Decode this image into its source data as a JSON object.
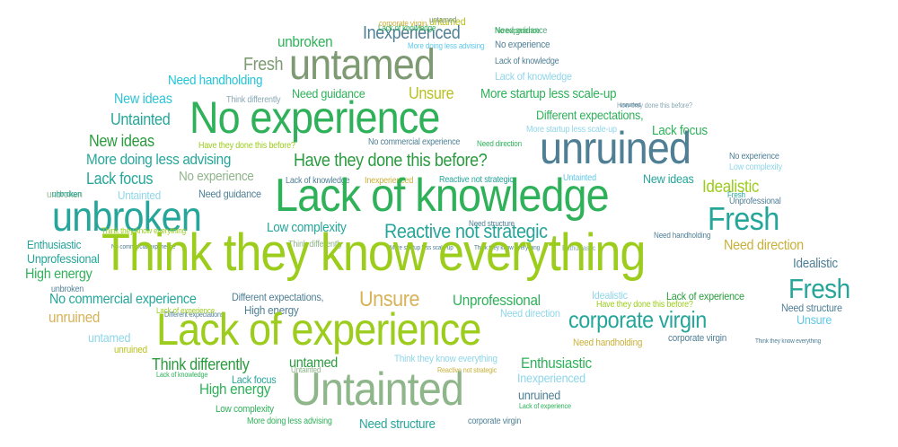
{
  "palette": {
    "lime": "#9ccc1c",
    "green": "#37b93b",
    "teal": "#26a69a",
    "slate": "#4f7f95",
    "sage": "#8fb58a",
    "sky": "#5fc8e8",
    "gold": "#d7b35a",
    "olive": "#a4b23c"
  },
  "words": [
    {
      "text": "corporate virgin",
      "color": "#c9b03a"
    },
    {
      "text": "untamed",
      "color": "#b8c11f"
    },
    {
      "text": "Need guidance",
      "color": "#5aa57e"
    },
    {
      "text": "unbroken",
      "color": "#2fb15a"
    },
    {
      "text": "Inexperienced",
      "color": "#4f7f95"
    },
    {
      "text": "More doing less advising",
      "color": "#5fc8e8"
    },
    {
      "text": "No experience",
      "color": "#4f7f95"
    },
    {
      "text": "Fresh",
      "color": "#7d9a72"
    },
    {
      "text": "untamed",
      "color": "#7d9a72"
    },
    {
      "text": "Lack of knowledge",
      "color": "#4f7f95"
    },
    {
      "text": "Lack of knowledge",
      "color": "#8fd6e9"
    },
    {
      "text": "Need handholding",
      "color": "#22c4d8"
    },
    {
      "text": "Think differently",
      "color": "#8aa8b4"
    },
    {
      "text": "Need guidance",
      "color": "#2fb15a"
    },
    {
      "text": "Unsure",
      "color": "#b8c11f"
    },
    {
      "text": "More startup less scale-up",
      "color": "#2fb15a"
    },
    {
      "text": "New ideas",
      "color": "#2ec3d5"
    },
    {
      "text": "No experience",
      "color": "#2fb15a"
    },
    {
      "text": "How they done this before?",
      "color": "#8aa8b4"
    },
    {
      "text": "Untainted",
      "color": "#26a69a"
    },
    {
      "text": "Different expectations,",
      "color": "#2fb15a"
    },
    {
      "text": "More startup less scale-up",
      "color": "#8fd6e9"
    },
    {
      "text": "Lack focus",
      "color": "#2fb15a"
    },
    {
      "text": "New ideas",
      "color": "#2a9b3e"
    },
    {
      "text": "Have they done this before?",
      "color": "#9ccc1c"
    },
    {
      "text": "No commercial experience",
      "color": "#4f7f95"
    },
    {
      "text": "Need direction",
      "color": "#2fb15a"
    },
    {
      "text": "unruined",
      "color": "#4f7f95"
    },
    {
      "text": "No experience",
      "color": "#4f7f95"
    },
    {
      "text": "More doing less advising",
      "color": "#26a69a"
    },
    {
      "text": "Have they done this before?",
      "color": "#2a9b3e"
    },
    {
      "text": "Low complexity",
      "color": "#8fd6e9"
    },
    {
      "text": "Lack focus",
      "color": "#26a69a"
    },
    {
      "text": "No experience",
      "color": "#8fb58a"
    },
    {
      "text": "Lack of knowledge",
      "color": "#4f7f95"
    },
    {
      "text": "Inexperienced",
      "color": "#c9b03a"
    },
    {
      "text": "Reactive not strategic",
      "color": "#26a69a"
    },
    {
      "text": "Untainted",
      "color": "#5fc8e8"
    },
    {
      "text": "New ideas",
      "color": "#26a69a"
    },
    {
      "text": "Idealistic",
      "color": "#9ccc1c"
    },
    {
      "text": "unbroken",
      "color": "#8fb58a"
    },
    {
      "text": "Untainted",
      "color": "#8fd6e9"
    },
    {
      "text": "Need guidance",
      "color": "#4f7f95"
    },
    {
      "text": "Lack of knowledge",
      "color": "#2fb15a"
    },
    {
      "text": "Fresh",
      "color": "#26a69a"
    },
    {
      "text": "Unprofessional",
      "color": "#4f7f95"
    },
    {
      "text": "unbroken",
      "color": "#26a69a"
    },
    {
      "text": "Need structure",
      "color": "#4f7f95"
    },
    {
      "text": "Low complexity",
      "color": "#26a69a"
    },
    {
      "text": "Reactive not strategic",
      "color": "#26a69a"
    },
    {
      "text": "Need handholding",
      "color": "#4f7f95"
    },
    {
      "text": "Enthusiastic",
      "color": "#26a69a"
    },
    {
      "text": "No commercial experience",
      "color": "#4f7f95"
    },
    {
      "text": "Think differently",
      "color": "#8fb58a"
    },
    {
      "text": "More startup less scale-up",
      "color": "#4f7f95"
    },
    {
      "text": "Think they know everything",
      "color": "#4f7f95"
    },
    {
      "text": "Enthusiastic",
      "color": "#8aa8b4"
    },
    {
      "text": "Need direction",
      "color": "#c9b03a"
    },
    {
      "text": "Unprofessional",
      "color": "#26a69a"
    },
    {
      "text": "Think they know everything",
      "color": "#9ccc1c"
    },
    {
      "text": "Idealistic",
      "color": "#4f7f95"
    },
    {
      "text": "High energy",
      "color": "#2fb15a"
    },
    {
      "text": "Fresh",
      "color": "#26a69a"
    },
    {
      "text": "unbroken",
      "color": "#4f7f95"
    },
    {
      "text": "No commercial experience",
      "color": "#26a69a"
    },
    {
      "text": "Different expectations,",
      "color": "#4f7f95"
    },
    {
      "text": "Unsure",
      "color": "#d7b35a"
    },
    {
      "text": "Unprofessional",
      "color": "#2fb15a"
    },
    {
      "text": "Idealistic",
      "color": "#8fd6e9"
    },
    {
      "text": "Lack of experience",
      "color": "#2a9b3e"
    },
    {
      "text": "Need structure",
      "color": "#4f7f95"
    },
    {
      "text": "Have they done this before?",
      "color": "#9ccc1c"
    },
    {
      "text": "Different expectations,",
      "color": "#4f7f95"
    },
    {
      "text": "High energy",
      "color": "#4f7f95"
    },
    {
      "text": "Need direction",
      "color": "#8fd6e9"
    },
    {
      "text": "unruined",
      "color": "#d7b35a"
    },
    {
      "text": "corporate virgin",
      "color": "#26a69a"
    },
    {
      "text": "Unsure",
      "color": "#5fc8e8"
    },
    {
      "text": "Lack of experience",
      "color": "#9ccc1c"
    },
    {
      "text": "untamed",
      "color": "#8fd6e9"
    },
    {
      "text": "Need handholding",
      "color": "#c9b03a"
    },
    {
      "text": "corporate virgin",
      "color": "#4f7f95"
    },
    {
      "text": "Think they know everything",
      "color": "#4f7f95"
    },
    {
      "text": "unruined",
      "color": "#b8c11f"
    },
    {
      "text": "Think differently",
      "color": "#2a9b3e"
    },
    {
      "text": "untamed",
      "color": "#2a9b3e"
    },
    {
      "text": "Think they know everything",
      "color": "#8fd6e9"
    },
    {
      "text": "Enthusiastic",
      "color": "#2fb15a"
    },
    {
      "text": "Lack of knowledge",
      "color": "#2fb15a"
    },
    {
      "text": "Lack focus",
      "color": "#26a69a"
    },
    {
      "text": "Reactive not strategic",
      "color": "#c9b03a"
    },
    {
      "text": "Inexperienced",
      "color": "#8fd6e9"
    },
    {
      "text": "High energy",
      "color": "#2fb15a"
    },
    {
      "text": "Untainted",
      "color": "#8fb58a"
    },
    {
      "text": "unruined",
      "color": "#4f7f95"
    },
    {
      "text": "Low complexity",
      "color": "#2fb15a"
    },
    {
      "text": "Lack of experience",
      "color": "#2fb15a"
    },
    {
      "text": "More doing less advising",
      "color": "#2fb15a"
    },
    {
      "text": "Need structure",
      "color": "#26a69a"
    },
    {
      "text": "corporate virgin",
      "color": "#4f7f95"
    },
    {
      "text": "untamed",
      "color": "#7d9a72"
    },
    {
      "text": "No experience",
      "color": "#2fb15a"
    },
    {
      "text": "unruined",
      "color": "#4f7f95"
    },
    {
      "text": "Lack of knowledge",
      "color": "#2fb15a"
    },
    {
      "text": "unbroken",
      "color": "#26a69a"
    },
    {
      "text": "Fresh",
      "color": "#26a69a"
    },
    {
      "text": "Think they know everything",
      "color": "#9ccc1c"
    },
    {
      "text": "Lack of experience",
      "color": "#9ccc1c"
    },
    {
      "text": "Untainted",
      "color": "#8fb58a"
    }
  ]
}
